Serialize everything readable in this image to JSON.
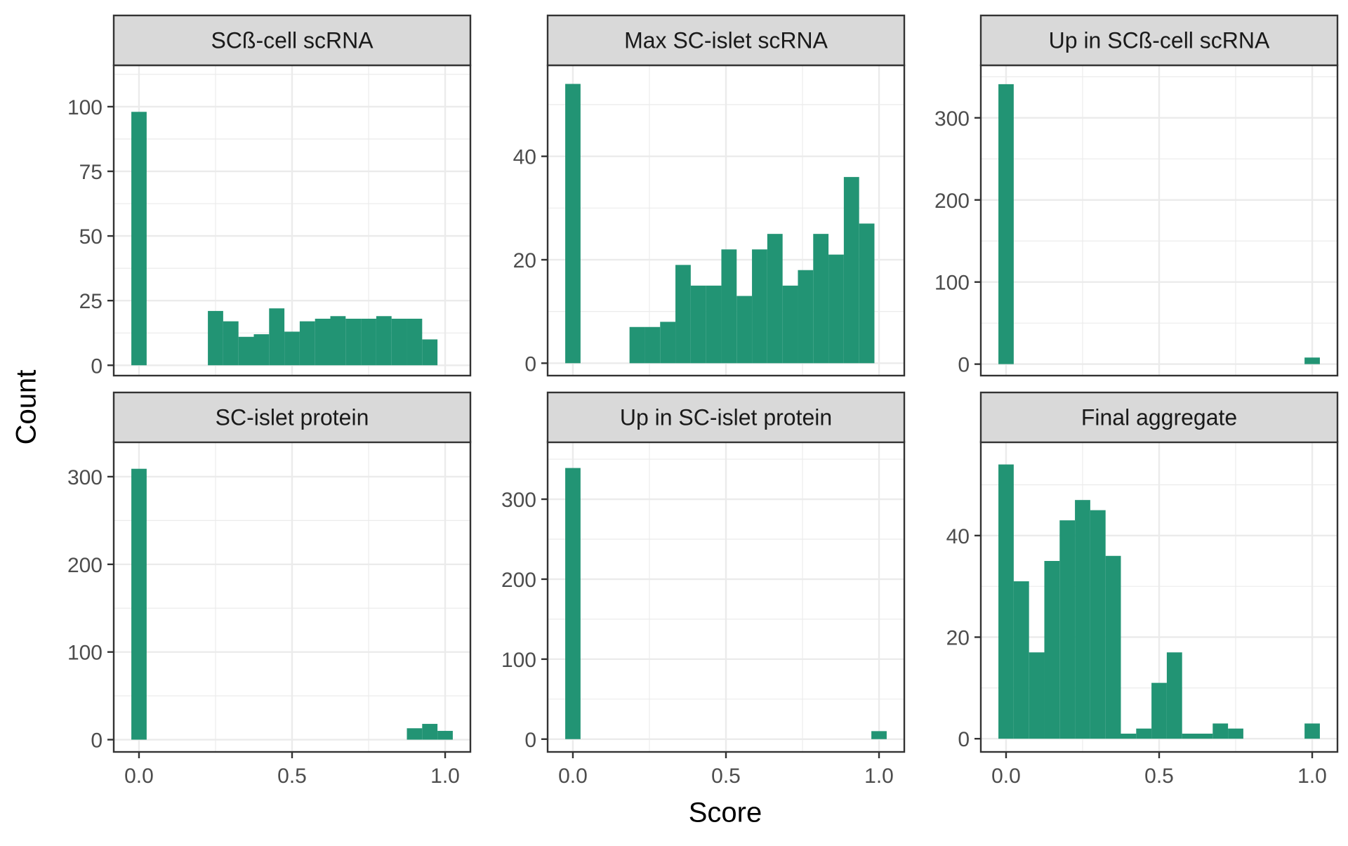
{
  "figure": {
    "xlabel": "Score",
    "ylabel": "Count",
    "bar_color": "#229474",
    "strip_color": "#d9d9d9",
    "grid_color": "#ebebeb"
  },
  "chart_data": [
    {
      "type": "bar",
      "title": "SCß-cell scRNA",
      "bin_width": 0.05,
      "x_ticks": [
        "0.0",
        "0.5",
        "1.0"
      ],
      "x_tick_values": [
        0,
        0.5,
        1
      ],
      "y_ticks": [
        "0",
        "25",
        "50",
        "75",
        "100"
      ],
      "y_tick_values": [
        0,
        25,
        50,
        75,
        100
      ],
      "ylim": [
        -4,
        116
      ],
      "bins": [
        {
          "x": 0.0,
          "count": 98
        },
        {
          "x": 0.25,
          "count": 21
        },
        {
          "x": 0.3,
          "count": 17
        },
        {
          "x": 0.35,
          "count": 11
        },
        {
          "x": 0.4,
          "count": 12
        },
        {
          "x": 0.45,
          "count": 22
        },
        {
          "x": 0.5,
          "count": 13
        },
        {
          "x": 0.55,
          "count": 17
        },
        {
          "x": 0.6,
          "count": 18
        },
        {
          "x": 0.65,
          "count": 19
        },
        {
          "x": 0.7,
          "count": 18
        },
        {
          "x": 0.75,
          "count": 18
        },
        {
          "x": 0.8,
          "count": 19
        },
        {
          "x": 0.85,
          "count": 18
        },
        {
          "x": 0.9,
          "count": 18
        },
        {
          "x": 0.95,
          "count": 10
        }
      ]
    },
    {
      "type": "bar",
      "title": "Max SC-islet scRNA",
      "bin_width": 0.05,
      "x_ticks": [
        "0.0",
        "0.5",
        "1.0"
      ],
      "x_tick_values": [
        0,
        0.5,
        1
      ],
      "y_ticks": [
        "0",
        "20",
        "40"
      ],
      "y_tick_values": [
        0,
        20,
        40
      ],
      "ylim": [
        -2.4,
        57.6
      ],
      "bins": [
        {
          "x": 0.0,
          "count": 54
        },
        {
          "x": 0.21,
          "count": 7
        },
        {
          "x": 0.26,
          "count": 7
        },
        {
          "x": 0.31,
          "count": 8
        },
        {
          "x": 0.36,
          "count": 19
        },
        {
          "x": 0.41,
          "count": 15
        },
        {
          "x": 0.46,
          "count": 15
        },
        {
          "x": 0.51,
          "count": 22
        },
        {
          "x": 0.56,
          "count": 13
        },
        {
          "x": 0.61,
          "count": 22
        },
        {
          "x": 0.66,
          "count": 25
        },
        {
          "x": 0.71,
          "count": 15
        },
        {
          "x": 0.76,
          "count": 18
        },
        {
          "x": 0.81,
          "count": 25
        },
        {
          "x": 0.86,
          "count": 21
        },
        {
          "x": 0.91,
          "count": 36
        },
        {
          "x": 0.96,
          "count": 27
        }
      ]
    },
    {
      "type": "bar",
      "title": "Up in SCß-cell scRNA",
      "bin_width": 0.05,
      "x_ticks": [
        "0.0",
        "0.5",
        "1.0"
      ],
      "x_tick_values": [
        0,
        0.5,
        1
      ],
      "y_ticks": [
        "0",
        "100",
        "200",
        "300"
      ],
      "y_tick_values": [
        0,
        100,
        200,
        300
      ],
      "ylim": [
        -14,
        364
      ],
      "bins": [
        {
          "x": 0.0,
          "count": 341
        },
        {
          "x": 1.0,
          "count": 8
        }
      ]
    },
    {
      "type": "bar",
      "title": "SC-islet protein",
      "bin_width": 0.05,
      "x_ticks": [
        "0.0",
        "0.5",
        "1.0"
      ],
      "x_tick_values": [
        0,
        0.5,
        1
      ],
      "y_ticks": [
        "0",
        "100",
        "200",
        "300"
      ],
      "y_tick_values": [
        0,
        100,
        200,
        300
      ],
      "ylim": [
        -14,
        340
      ],
      "bins": [
        {
          "x": 0.0,
          "count": 309
        },
        {
          "x": 0.9,
          "count": 13
        },
        {
          "x": 0.95,
          "count": 18
        },
        {
          "x": 1.0,
          "count": 10
        }
      ]
    },
    {
      "type": "bar",
      "title": "Up in SC-islet protein",
      "bin_width": 0.05,
      "x_ticks": [
        "0.0",
        "0.5",
        "1.0"
      ],
      "x_tick_values": [
        0,
        0.5,
        1
      ],
      "y_ticks": [
        "0",
        "100",
        "200",
        "300"
      ],
      "y_tick_values": [
        0,
        100,
        200,
        300
      ],
      "ylim": [
        -16,
        372
      ],
      "bins": [
        {
          "x": 0.0,
          "count": 339
        },
        {
          "x": 1.0,
          "count": 10
        }
      ]
    },
    {
      "type": "bar",
      "title": "Final aggregate",
      "bin_width": 0.05,
      "x_ticks": [
        "0.0",
        "0.5",
        "1.0"
      ],
      "x_tick_values": [
        0,
        0.5,
        1
      ],
      "y_ticks": [
        "0",
        "20",
        "40"
      ],
      "y_tick_values": [
        0,
        20,
        40
      ],
      "ylim": [
        -2.6,
        58.5
      ],
      "bins": [
        {
          "x": 0.0,
          "count": 54
        },
        {
          "x": 0.05,
          "count": 31
        },
        {
          "x": 0.1,
          "count": 17
        },
        {
          "x": 0.15,
          "count": 35
        },
        {
          "x": 0.2,
          "count": 43
        },
        {
          "x": 0.25,
          "count": 47
        },
        {
          "x": 0.3,
          "count": 45
        },
        {
          "x": 0.35,
          "count": 36
        },
        {
          "x": 0.4,
          "count": 1
        },
        {
          "x": 0.45,
          "count": 2
        },
        {
          "x": 0.5,
          "count": 11
        },
        {
          "x": 0.55,
          "count": 17
        },
        {
          "x": 0.6,
          "count": 1
        },
        {
          "x": 0.65,
          "count": 1
        },
        {
          "x": 0.7,
          "count": 3
        },
        {
          "x": 0.75,
          "count": 2
        },
        {
          "x": 0.95,
          "count": 0
        },
        {
          "x": 1.0,
          "count": 3
        }
      ]
    }
  ]
}
